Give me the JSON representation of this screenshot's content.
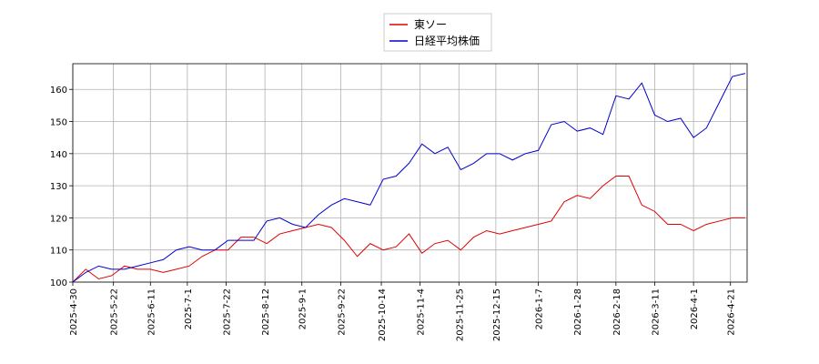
{
  "chart_data": {
    "type": "line",
    "x": [
      "2025-4-30",
      "2025-5-7",
      "2025-5-14",
      "2025-5-21",
      "2025-5-28",
      "2025-6-4",
      "2025-6-11",
      "2025-6-18",
      "2025-6-25",
      "2025-7-2",
      "2025-7-9",
      "2025-7-16",
      "2025-7-23",
      "2025-7-30",
      "2025-8-6",
      "2025-8-13",
      "2025-8-20",
      "2025-8-27",
      "2025-9-3",
      "2025-9-10",
      "2025-9-17",
      "2025-9-24",
      "2025-10-1",
      "2025-10-8",
      "2025-10-15",
      "2025-10-22",
      "2025-10-29",
      "2025-11-5",
      "2025-11-12",
      "2025-11-19",
      "2025-11-26",
      "2025-12-3",
      "2025-12-10",
      "2025-12-17",
      "2025-12-24",
      "2025-12-31",
      "2026-1-7",
      "2026-1-14",
      "2026-1-21",
      "2026-1-28",
      "2026-2-4",
      "2026-2-11",
      "2026-2-18",
      "2026-2-25",
      "2026-3-4",
      "2026-3-11",
      "2026-3-18",
      "2026-3-25",
      "2026-4-1",
      "2026-4-8",
      "2026-4-15",
      "2026-4-22",
      "2026-4-29"
    ],
    "series": [
      {
        "name": "東ソー",
        "color": "#e00000",
        "values": [
          100,
          104,
          101,
          102,
          105,
          104,
          104,
          103,
          104,
          105,
          108,
          110,
          110,
          114,
          114,
          112,
          115,
          116,
          117,
          118,
          117,
          113,
          108,
          112,
          110,
          111,
          115,
          109,
          112,
          113,
          110,
          114,
          116,
          115,
          116,
          117,
          118,
          119,
          125,
          127,
          126,
          130,
          133,
          133,
          124,
          122,
          118,
          118,
          116,
          118,
          119,
          120,
          120
        ]
      },
      {
        "name": "日経平均株価",
        "color": "#0000d0",
        "values": [
          100,
          103,
          105,
          104,
          104,
          105,
          106,
          107,
          110,
          111,
          110,
          110,
          113,
          113,
          113,
          119,
          120,
          118,
          117,
          121,
          124,
          126,
          125,
          124,
          132,
          133,
          137,
          143,
          140,
          142,
          135,
          137,
          140,
          140,
          138,
          140,
          141,
          149,
          150,
          147,
          148,
          146,
          158,
          157,
          162,
          152,
          150,
          151,
          145,
          148,
          156,
          164,
          165
        ]
      }
    ],
    "xlim": [
      "2025-4-30",
      "2026-4-30"
    ],
    "xticks": [
      "2025-4-30",
      "2025-5-22",
      "2025-6-11",
      "2025-7-1",
      "2025-7-22",
      "2025-8-12",
      "2025-9-1",
      "2025-9-22",
      "2025-10-14",
      "2025-11-4",
      "2025-11-25",
      "2025-12-15",
      "2026-1-7",
      "2026-1-28",
      "2026-2-18",
      "2026-3-11",
      "2026-4-1",
      "2026-4-21"
    ],
    "ylim": [
      100,
      168
    ],
    "yticks": [
      100,
      110,
      120,
      130,
      140,
      150,
      160
    ],
    "grid": true
  }
}
